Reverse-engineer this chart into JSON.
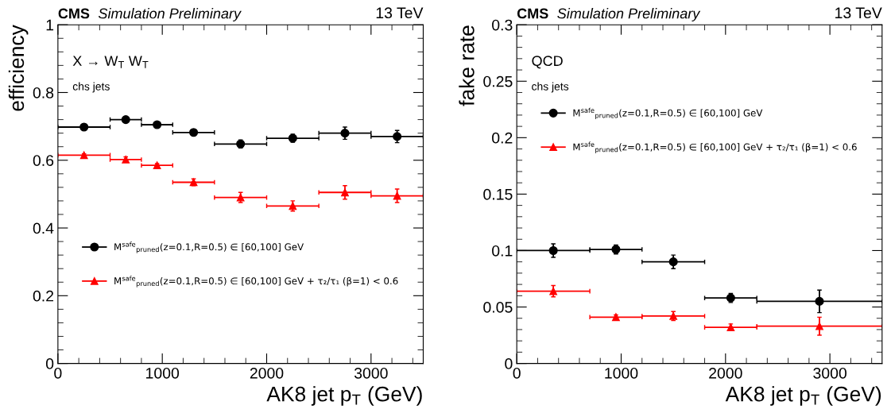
{
  "chart_data": [
    {
      "type": "scatter",
      "title": "CMS",
      "subtitle": "Simulation Preliminary",
      "annotations": [
        "13 TeV",
        "X → W$_{T}$ W$_{T}$",
        "chs jets"
      ],
      "xlabel": "AK8 jet p$_{T}$ (GeV)",
      "ylabel": "efficiency",
      "xlim": [
        0,
        3500
      ],
      "xticks": [
        0,
        1000,
        2000,
        3000
      ],
      "ylim": [
        0,
        1
      ],
      "yticks": [
        0,
        0.2,
        0.4,
        0.6,
        0.8,
        1
      ],
      "grid": false,
      "legend": "bottom",
      "series": [
        {
          "name": "M$^{safe}$$_{pruned}$(z=0.1,R=0.5) ∈ [60,100] GeV",
          "color": "#000000",
          "marker": "circle",
          "x": [
            250,
            650,
            950,
            1300,
            1750,
            2250,
            2750,
            3250
          ],
          "values": [
            0.698,
            0.72,
            0.705,
            0.682,
            0.648,
            0.665,
            0.68,
            0.67
          ],
          "errors": [
            0.004,
            0.005,
            0.005,
            0.008,
            0.012,
            0.012,
            0.018,
            0.018
          ],
          "xerrors": [
            250,
            150,
            150,
            200,
            250,
            250,
            250,
            250
          ]
        },
        {
          "name": "M$^{safe}$$_{pruned}$(z=0.1,R=0.5) ∈ [60,100] GeV + τ₂/τ₁ (β=1) < 0.6",
          "color": "#ff0000",
          "marker": "triangle",
          "x": [
            250,
            650,
            950,
            1300,
            1750,
            2250,
            2750,
            3250
          ],
          "values": [
            0.615,
            0.602,
            0.585,
            0.535,
            0.49,
            0.465,
            0.505,
            0.495
          ],
          "errors": [
            0.004,
            0.008,
            0.005,
            0.01,
            0.015,
            0.015,
            0.02,
            0.02
          ],
          "xerrors": [
            250,
            150,
            150,
            200,
            250,
            250,
            250,
            250
          ]
        }
      ]
    },
    {
      "type": "scatter",
      "title": "CMS",
      "subtitle": "Simulation Preliminary",
      "annotations": [
        "13 TeV",
        "QCD",
        "chs jets"
      ],
      "xlabel": "AK8 jet p$_{T}$ (GeV)",
      "ylabel": "fake rate",
      "xlim": [
        0,
        3500
      ],
      "xticks": [
        0,
        1000,
        2000,
        3000
      ],
      "ylim": [
        0,
        0.3
      ],
      "yticks": [
        0,
        0.05,
        0.1,
        0.15,
        0.2,
        0.25,
        0.3
      ],
      "grid": false,
      "legend": "top",
      "series": [
        {
          "name": "M$^{safe}$$_{pruned}$(z=0.1,R=0.5) ∈ [60,100] GeV",
          "color": "#000000",
          "marker": "circle",
          "x": [
            350,
            950,
            1500,
            2050,
            2900
          ],
          "values": [
            0.1,
            0.101,
            0.09,
            0.058,
            0.055
          ],
          "errors": [
            0.006,
            0.004,
            0.006,
            0.004,
            0.01
          ],
          "xerrors": [
            350,
            250,
            300,
            250,
            600
          ]
        },
        {
          "name": "M$^{safe}$$_{pruned}$(z=0.1,R=0.5) ∈ [60,100] GeV + τ₂/τ₁ (β=1) < 0.6",
          "color": "#ff0000",
          "marker": "triangle",
          "x": [
            350,
            950,
            1500,
            2050,
            2900
          ],
          "values": [
            0.064,
            0.041,
            0.042,
            0.032,
            0.033
          ],
          "errors": [
            0.005,
            0.002,
            0.004,
            0.003,
            0.008
          ],
          "xerrors": [
            350,
            250,
            300,
            250,
            600
          ]
        }
      ]
    }
  ]
}
